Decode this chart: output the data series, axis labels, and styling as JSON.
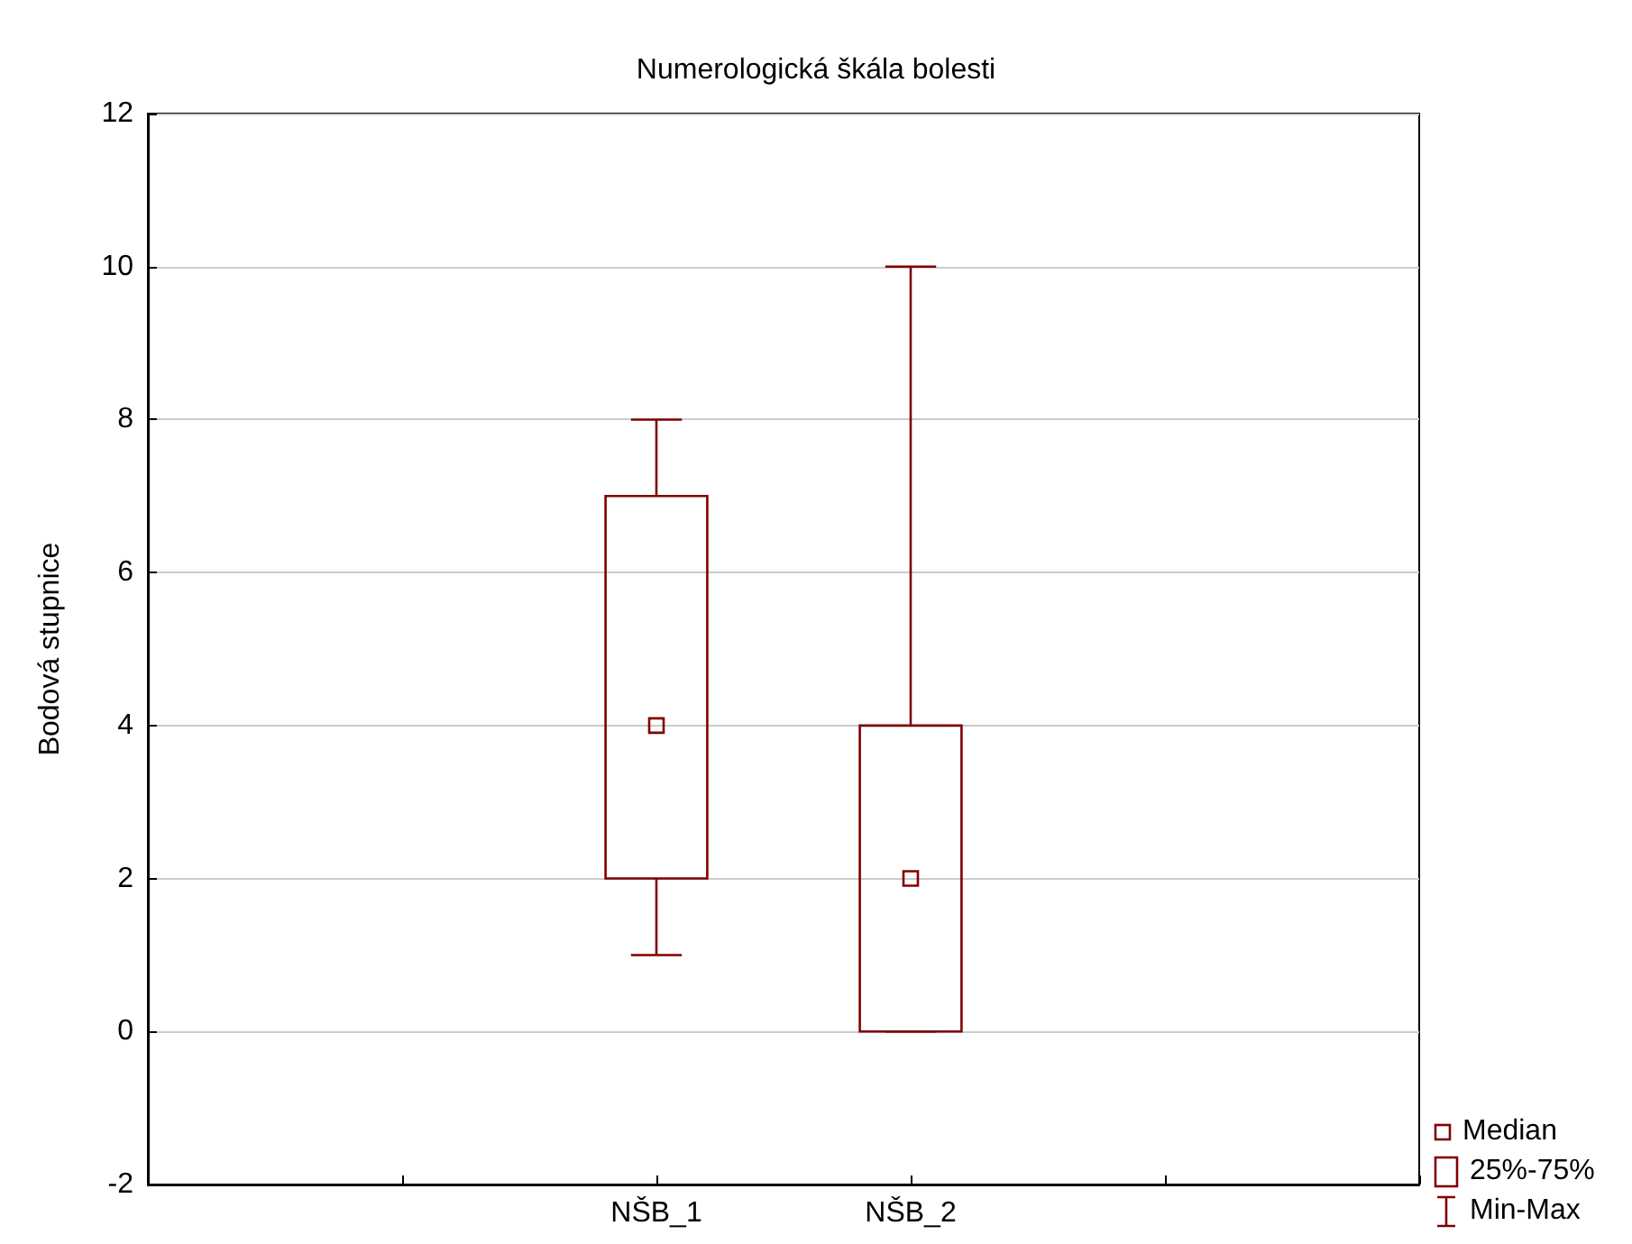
{
  "chart_data": {
    "type": "box",
    "title": "Numerologická škála bolesti",
    "ylabel": "Bodová stupnice",
    "categories": [
      null,
      null,
      "NŠB_1",
      "NŠB_2",
      null,
      null
    ],
    "boxes": [
      null,
      null,
      {
        "low": 1,
        "q1": 2,
        "median": 4,
        "q3": 7,
        "high": 8
      },
      {
        "low": 0,
        "q1": 0,
        "median": 2,
        "q3": 4,
        "high": 10
      },
      null,
      null
    ],
    "color": "#800000",
    "marker": "square",
    "ylim": [
      -2,
      12
    ],
    "yticks": [
      -2,
      0,
      2,
      4,
      6,
      8,
      10,
      12
    ],
    "grid": "y",
    "annotations": [
      "Median",
      "25%-75%",
      "Min-Max"
    ]
  }
}
